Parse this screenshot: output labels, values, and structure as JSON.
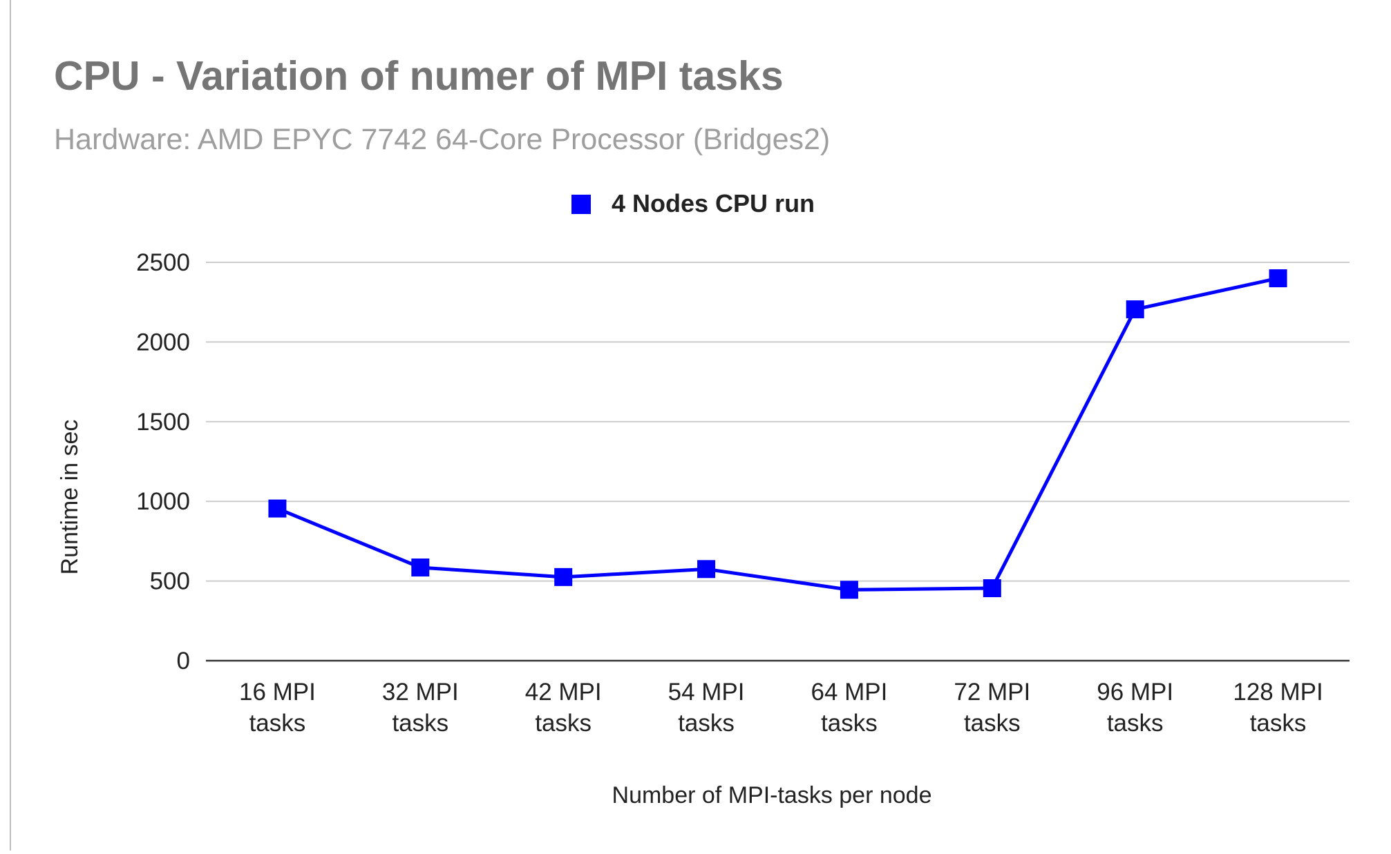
{
  "chart_data": {
    "type": "line",
    "title": "CPU - Variation of numer of MPI tasks",
    "subtitle": "Hardware: AMD EPYC 7742 64-Core Processor (Bridges2)",
    "xlabel": "Number of MPI-tasks per node",
    "ylabel": "Runtime in sec",
    "ylim": [
      0,
      2500
    ],
    "yticks": [
      0,
      500,
      1000,
      1500,
      2000,
      2500
    ],
    "categories": [
      [
        "16 MPI",
        "tasks"
      ],
      [
        "32 MPI",
        "tasks"
      ],
      [
        "42 MPI",
        "tasks"
      ],
      [
        "54 MPI",
        "tasks"
      ],
      [
        "64 MPI",
        "tasks"
      ],
      [
        "72 MPI",
        "tasks"
      ],
      [
        "96 MPI",
        "tasks"
      ],
      [
        "128 MPI",
        "tasks"
      ]
    ],
    "series": [
      {
        "name": "4 Nodes CPU run",
        "color": "#0000ff",
        "marker": "square",
        "values": [
          955,
          585,
          525,
          575,
          445,
          455,
          2205,
          2400
        ]
      }
    ],
    "grid": true,
    "legend_position": "top-center"
  }
}
